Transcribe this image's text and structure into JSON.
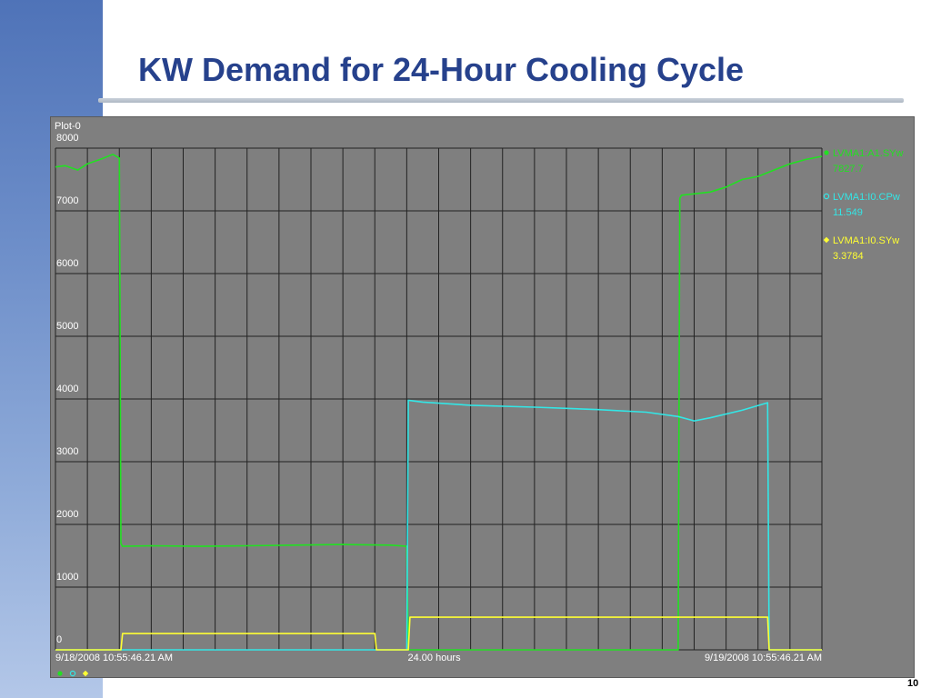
{
  "slide": {
    "title": "KW Demand for 24-Hour Cooling Cycle",
    "page_number": "10"
  },
  "plot": {
    "name": "Plot-0",
    "background_color": "#7f7f7f",
    "grid_color": "#222222"
  },
  "chart_data": {
    "type": "line",
    "title": "Plot-0",
    "x_unit": "hours",
    "x_range": [
      0,
      24
    ],
    "x_tick_labels": [
      "9/18/2008 10:55:46.21 AM",
      "24.00 hours",
      "9/19/2008 10:55:46.21 AM"
    ],
    "y_range": [
      0,
      8000
    ],
    "y_ticks": [
      0,
      1000,
      2000,
      3000,
      4000,
      5000,
      6000,
      7000,
      8000
    ],
    "grid": true,
    "legend_position": "right",
    "series": [
      {
        "name": "LVMA1:A1.SYw",
        "value_label": "7827.7",
        "color": "#22e022",
        "marker": "filled-circle",
        "x": [
          0,
          0.3,
          0.7,
          1.0,
          1.4,
          1.8,
          2.0,
          2.05,
          2.1,
          3.0,
          4.5,
          6.0,
          7.5,
          9.0,
          10.5,
          11.0,
          11.05,
          11.1,
          14.0,
          17.0,
          19.5,
          19.55,
          19.6,
          20.5,
          21.0,
          21.5,
          22.0,
          22.5,
          23.0,
          23.5,
          24.0
        ],
        "y": [
          7700,
          7720,
          7650,
          7750,
          7820,
          7900,
          7840,
          1700,
          1650,
          1660,
          1650,
          1660,
          1670,
          1680,
          1670,
          1650,
          0,
          0,
          0,
          0,
          0,
          7200,
          7250,
          7300,
          7380,
          7500,
          7550,
          7650,
          7750,
          7820,
          7870
        ]
      },
      {
        "name": "LVMA1:I0.CPw",
        "value_label": "11.549",
        "color": "#33e6e6",
        "marker": "open-circle",
        "x": [
          0,
          11.0,
          11.05,
          11.5,
          13.0,
          15.0,
          17.0,
          18.5,
          19.5,
          20.0,
          20.5,
          21.5,
          22.3,
          22.35,
          24.0
        ],
        "y": [
          0,
          0,
          3980,
          3950,
          3900,
          3870,
          3830,
          3790,
          3720,
          3650,
          3700,
          3820,
          3940,
          0,
          0
        ]
      },
      {
        "name": "LVMA1:I0.SYw",
        "value_label": "3.3784",
        "color": "#ffff33",
        "marker": "diamond",
        "x": [
          0,
          2.05,
          2.1,
          10.0,
          10.05,
          11.05,
          11.1,
          19.5,
          22.3,
          22.35,
          24.0
        ],
        "y": [
          0,
          0,
          260,
          260,
          0,
          0,
          520,
          520,
          520,
          0,
          0
        ]
      }
    ]
  }
}
